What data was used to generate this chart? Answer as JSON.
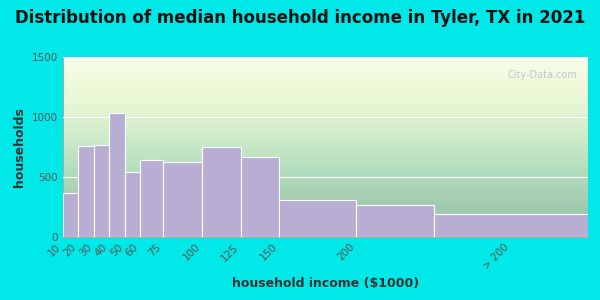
{
  "title": "Distribution of median household income in Tyler, TX in 2021",
  "xlabel": "household income ($1000)",
  "ylabel": "households",
  "bin_edges": [
    10,
    20,
    30,
    40,
    50,
    60,
    75,
    100,
    125,
    150,
    200,
    250,
    350
  ],
  "tick_labels": [
    "10",
    "20",
    "30",
    "40",
    "50",
    "60",
    "75",
    "100",
    "125",
    "150",
    "200",
    "> 200"
  ],
  "tick_positions": [
    10,
    20,
    30,
    40,
    50,
    60,
    75,
    100,
    125,
    150,
    200,
    300
  ],
  "values": [
    370,
    760,
    770,
    1030,
    540,
    640,
    625,
    750,
    665,
    305,
    265,
    195
  ],
  "bar_color": "#b8aed4",
  "bar_edge_color": "#ffffff",
  "ylim": [
    0,
    1500
  ],
  "yticks": [
    0,
    500,
    1000,
    1500
  ],
  "background_outer": "#00e8e8",
  "title_fontsize": 12,
  "axis_label_fontsize": 9,
  "tick_fontsize": 7.5,
  "watermark_text": "City-Data.com"
}
